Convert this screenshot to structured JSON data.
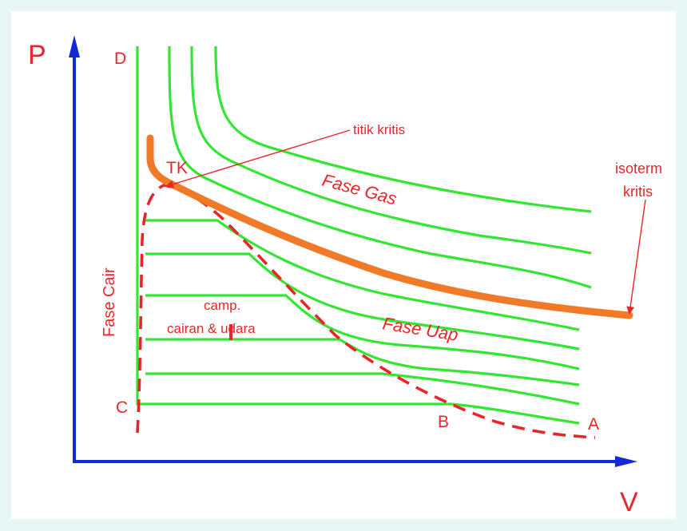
{
  "axes": {
    "p_label": "P",
    "v_label": "V"
  },
  "points": {
    "a": "A",
    "b": "B",
    "c": "C",
    "d": "D",
    "tk": "TK"
  },
  "regions": {
    "gas": "Fase Gas",
    "vapor": "Fase Uap",
    "liquid": "Fase Cair",
    "mixture_line1": "camp.",
    "mixture_line2": "cairan & udara"
  },
  "annotations": {
    "critical_point": "titik kritis",
    "critical_isotherm_line1": "isoterm",
    "critical_isotherm_line2": "kritis"
  },
  "colors": {
    "background": "#e6f7f5",
    "axis": "#1428d8",
    "isotherm": "#33e633",
    "critical_isotherm": "#f07a28",
    "dome": "#e8262a",
    "label": "#e8262a"
  }
}
